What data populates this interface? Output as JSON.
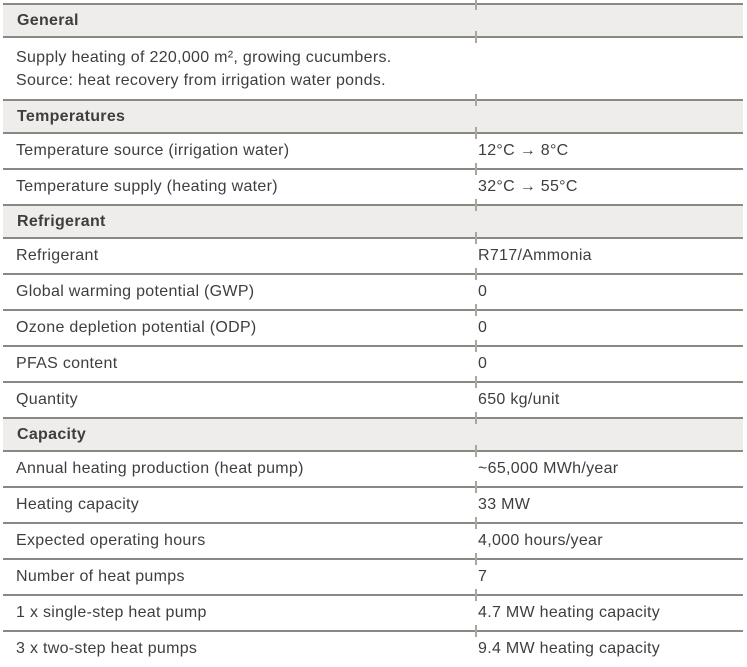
{
  "document": {
    "colors": {
      "header_background": "#eeedeb",
      "rule": "#8b8884",
      "text": "#3e3e3c",
      "column_tick": "#aaa7a3"
    },
    "sections": [
      {
        "title": "General",
        "type": "text",
        "lines": [
          "Supply heating of 220,000 m², growing cucumbers.",
          "Source: heat recovery from irrigation water ponds."
        ]
      },
      {
        "title": "Temperatures",
        "type": "rows",
        "rows": [
          {
            "label": "Temperature source (irrigation water)",
            "value": "12°C → 8°C"
          },
          {
            "label": "Temperature supply (heating water)",
            "value": "32°C → 55°C"
          }
        ]
      },
      {
        "title": "Refrigerant",
        "type": "rows",
        "rows": [
          {
            "label": "Refrigerant",
            "value": "R717/Ammonia"
          },
          {
            "label": "Global warming potential (GWP)",
            "value": "0"
          },
          {
            "label": "Ozone depletion potential (ODP)",
            "value": "0"
          },
          {
            "label": "PFAS content",
            "value": "0"
          },
          {
            "label": "Quantity",
            "value": "650 kg/unit"
          }
        ]
      },
      {
        "title": "Capacity",
        "type": "rows",
        "rows": [
          {
            "label": "Annual heating production (heat pump)",
            "value": "~65,000 MWh/year"
          },
          {
            "label": "Heating capacity",
            "value": "33 MW"
          },
          {
            "label": "Expected operating hours",
            "value": "4,000 hours/year"
          },
          {
            "label": "Number of heat pumps",
            "value": "7"
          },
          {
            "label": "1 x single-step heat pump",
            "value": "4.7 MW heating capacity"
          },
          {
            "label": "3 x two-step heat pumps",
            "value": "9.4 MW heating capacity"
          }
        ]
      }
    ]
  }
}
